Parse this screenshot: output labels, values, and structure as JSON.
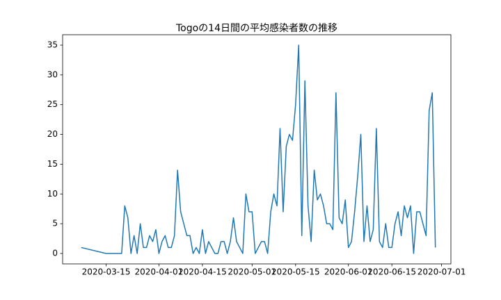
{
  "chart_data": {
    "type": "line",
    "title": "Togoの14日間の平均感染者数の推移",
    "x": [
      "2020-03-07",
      "2020-03-15",
      "2020-03-20",
      "2020-03-21",
      "2020-03-22",
      "2020-03-23",
      "2020-03-24",
      "2020-03-25",
      "2020-03-26",
      "2020-03-27",
      "2020-03-28",
      "2020-03-29",
      "2020-03-30",
      "2020-03-31",
      "2020-04-01",
      "2020-04-02",
      "2020-04-03",
      "2020-04-04",
      "2020-04-05",
      "2020-04-06",
      "2020-04-07",
      "2020-04-08",
      "2020-04-09",
      "2020-04-10",
      "2020-04-11",
      "2020-04-12",
      "2020-04-13",
      "2020-04-14",
      "2020-04-15",
      "2020-04-16",
      "2020-04-17",
      "2020-04-18",
      "2020-04-19",
      "2020-04-20",
      "2020-04-21",
      "2020-04-22",
      "2020-04-23",
      "2020-04-24",
      "2020-04-25",
      "2020-04-26",
      "2020-04-27",
      "2020-04-28",
      "2020-04-29",
      "2020-04-30",
      "2020-05-01",
      "2020-05-02",
      "2020-05-03",
      "2020-05-04",
      "2020-05-05",
      "2020-05-06",
      "2020-05-07",
      "2020-05-08",
      "2020-05-09",
      "2020-05-10",
      "2020-05-11",
      "2020-05-12",
      "2020-05-13",
      "2020-05-14",
      "2020-05-15",
      "2020-05-16",
      "2020-05-17",
      "2020-05-18",
      "2020-05-19",
      "2020-05-20",
      "2020-05-21",
      "2020-05-22",
      "2020-05-23",
      "2020-05-24",
      "2020-05-25",
      "2020-05-26",
      "2020-05-27",
      "2020-05-28",
      "2020-05-29",
      "2020-05-30",
      "2020-05-31",
      "2020-06-01",
      "2020-06-02",
      "2020-06-03",
      "2020-06-04",
      "2020-06-05",
      "2020-06-06",
      "2020-06-07",
      "2020-06-08",
      "2020-06-09",
      "2020-06-10",
      "2020-06-11",
      "2020-06-12",
      "2020-06-13",
      "2020-06-14",
      "2020-06-15",
      "2020-06-16",
      "2020-06-17",
      "2020-06-18",
      "2020-06-19",
      "2020-06-20",
      "2020-06-21",
      "2020-06-22",
      "2020-06-23",
      "2020-06-24",
      "2020-06-25",
      "2020-06-26",
      "2020-06-27",
      "2020-06-28",
      "2020-06-29"
    ],
    "values": [
      1,
      0,
      0,
      8,
      6,
      0,
      3,
      0,
      5,
      1,
      1,
      3,
      2,
      4,
      0,
      2,
      3,
      1,
      1,
      3,
      14,
      7,
      5,
      3,
      3,
      0,
      1,
      0,
      4,
      0,
      2,
      1,
      0,
      0,
      2,
      2,
      0,
      2,
      6,
      2,
      1,
      0,
      10,
      7,
      7,
      0,
      1,
      2,
      2,
      0,
      7,
      10,
      8,
      21,
      7,
      18,
      20,
      19,
      25,
      35,
      3,
      29,
      8,
      2,
      14,
      9,
      10,
      8,
      5,
      5,
      4,
      27,
      6,
      5,
      9,
      1,
      2,
      7,
      13,
      20,
      2,
      8,
      2,
      4,
      21,
      2,
      1,
      5,
      1,
      1,
      5,
      7,
      3,
      8,
      6,
      8,
      0,
      7,
      7,
      5,
      3,
      24,
      27,
      1
    ],
    "color": "#1f77b4",
    "xlim": [
      "2020-03-01",
      "2020-07-04"
    ],
    "xticks": [
      "2020-03-15",
      "2020-04-01",
      "2020-04-15",
      "2020-05-01",
      "2020-05-15",
      "2020-06-01",
      "2020-06-15",
      "2020-07-01"
    ],
    "ylim": [
      -1.75,
      36.75
    ],
    "yticks": [
      0,
      5,
      10,
      15,
      20,
      25,
      30,
      35
    ]
  }
}
